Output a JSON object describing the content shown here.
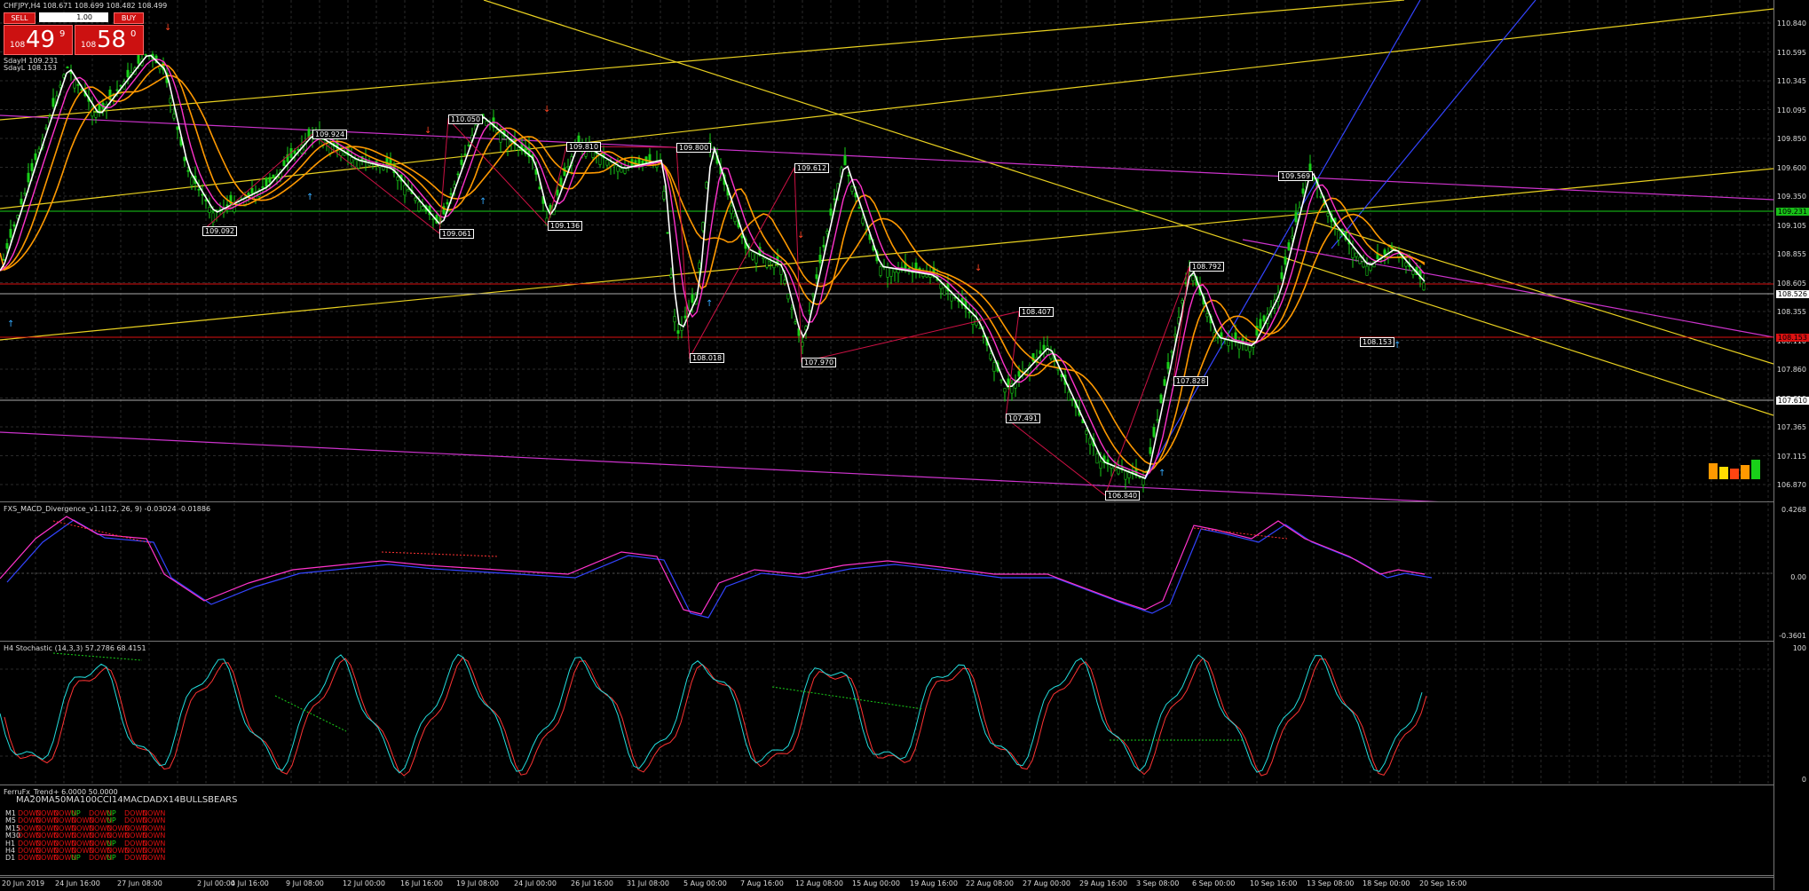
{
  "symbol_header": "CHFJPY,H4  108.671 108.699 108.482 108.499",
  "trade_panel": {
    "sell_label": "SELL",
    "buy_label": "BUY",
    "lot_value": "1.00",
    "sell_price": {
      "pre": "108",
      "big": "49",
      "sup": "9"
    },
    "buy_price": {
      "pre": "108",
      "big": "58",
      "sup": "0"
    }
  },
  "info_lines": [
    "SdayH 109.231",
    "SdayL 108.153"
  ],
  "price_axis": [
    "110.840",
    "110.595",
    "110.345",
    "110.095",
    "109.850",
    "109.600",
    "109.350",
    "109.105",
    "108.855",
    "108.605",
    "108.355",
    "108.110",
    "107.860",
    "107.610",
    "107.365",
    "107.115",
    "106.870"
  ],
  "price_axis_boxes": [
    {
      "label": "109.231",
      "color": "#18c018",
      "text": "#000"
    },
    {
      "label": "108.526",
      "color": "#ffffff",
      "text": "#000"
    },
    {
      "label": "108.153",
      "color": "#dd1111",
      "text": "#000"
    },
    {
      "label": "107.610",
      "color": "#ffffff",
      "text": "#000"
    }
  ],
  "price_labels": [
    {
      "label": "109.092"
    },
    {
      "label": "109.924"
    },
    {
      "label": "109.061"
    },
    {
      "label": "110.050"
    },
    {
      "label": "109.136"
    },
    {
      "label": "109.810"
    },
    {
      "label": "109.800"
    },
    {
      "label": "108.018"
    },
    {
      "label": "109.612"
    },
    {
      "label": "107.970"
    },
    {
      "label": "108.407"
    },
    {
      "label": "107.491"
    },
    {
      "label": "106.840"
    },
    {
      "label": "108.792"
    },
    {
      "label": "107.828"
    },
    {
      "label": "109.569"
    },
    {
      "label": "108.153"
    }
  ],
  "macd": {
    "title": "FXS_MACD_Divergence_v1.1(12, 26, 9) -0.03024 -0.01886",
    "axis": [
      "0.4268",
      "0.00",
      "-0.3601"
    ]
  },
  "stoch": {
    "title": "H4 Stochastic (14,3,3) 57.2786 68.4151",
    "axis": [
      "100",
      "0"
    ]
  },
  "trend": {
    "title": "FerruFx_Trend+ 6.0000 50.0000",
    "headers": "MA20MA50MA100CCI14MACDADX14BULLSBEARS",
    "rows": [
      {
        "tf": "M1",
        "cells": [
          "DOWN",
          "DOWN",
          "DOWN",
          "UP",
          "DOWN",
          "UP",
          "DOWN",
          "DOWN"
        ]
      },
      {
        "tf": "M5",
        "cells": [
          "DOWN",
          "DOWN",
          "DOWN",
          "DOWN",
          "DOWN",
          "UP",
          "DOWN",
          "DOWN"
        ]
      },
      {
        "tf": "M15",
        "cells": [
          "DOWN",
          "DOWN",
          "DOWN",
          "DOWN",
          "DOWN",
          "DOWN",
          "DOWN",
          "DOWN"
        ]
      },
      {
        "tf": "M30",
        "cells": [
          "DOWN",
          "DOWN",
          "DOWN",
          "DOWN",
          "DOWN",
          "DOWN",
          "DOWN",
          "DOWN"
        ]
      },
      {
        "tf": "H1",
        "cells": [
          "DOWN",
          "DOWN",
          "DOWN",
          "DOWN",
          "DOWN",
          "UP",
          "DOWN",
          "DOWN"
        ]
      },
      {
        "tf": "H4",
        "cells": [
          "DOWN",
          "DOWN",
          "DOWN",
          "DOWN",
          "DOWN",
          "DOWN",
          "DOWN",
          "DOWN"
        ]
      },
      {
        "tf": "D1",
        "cells": [
          "DOWN",
          "DOWN",
          "DOWN",
          "UP",
          "DOWN",
          "UP",
          "DOWN",
          "DOWN"
        ]
      }
    ]
  },
  "time_axis": [
    "20 Jun 2019",
    "24 Jun 16:00",
    "27 Jun 08:00",
    "2 Jul 00:00",
    "4 Jul 16:00",
    "9 Jul 08:00",
    "12 Jul 00:00",
    "16 Jul 16:00",
    "19 Jul 08:00",
    "24 Jul 00:00",
    "26 Jul 16:00",
    "31 Jul 08:00",
    "5 Aug 00:00",
    "7 Aug 16:00",
    "12 Aug 08:00",
    "15 Aug 00:00",
    "19 Aug 16:00",
    "22 Aug 08:00",
    "27 Aug 00:00",
    "29 Aug 16:00",
    "3 Sep 08:00",
    "6 Sep 00:00",
    "10 Sep 16:00",
    "13 Sep 08:00",
    "18 Sep 00:00",
    "20 Sep 16:00"
  ],
  "colors": {
    "bull": "#19d019",
    "bear": "#19d019",
    "ma_fast": "#ffffff",
    "ma_mid": "#ff33cc",
    "ma_slow": "#ff9900",
    "trendline": "#e8d020",
    "channel": "#cc33cc",
    "signal": "#3344ff"
  }
}
